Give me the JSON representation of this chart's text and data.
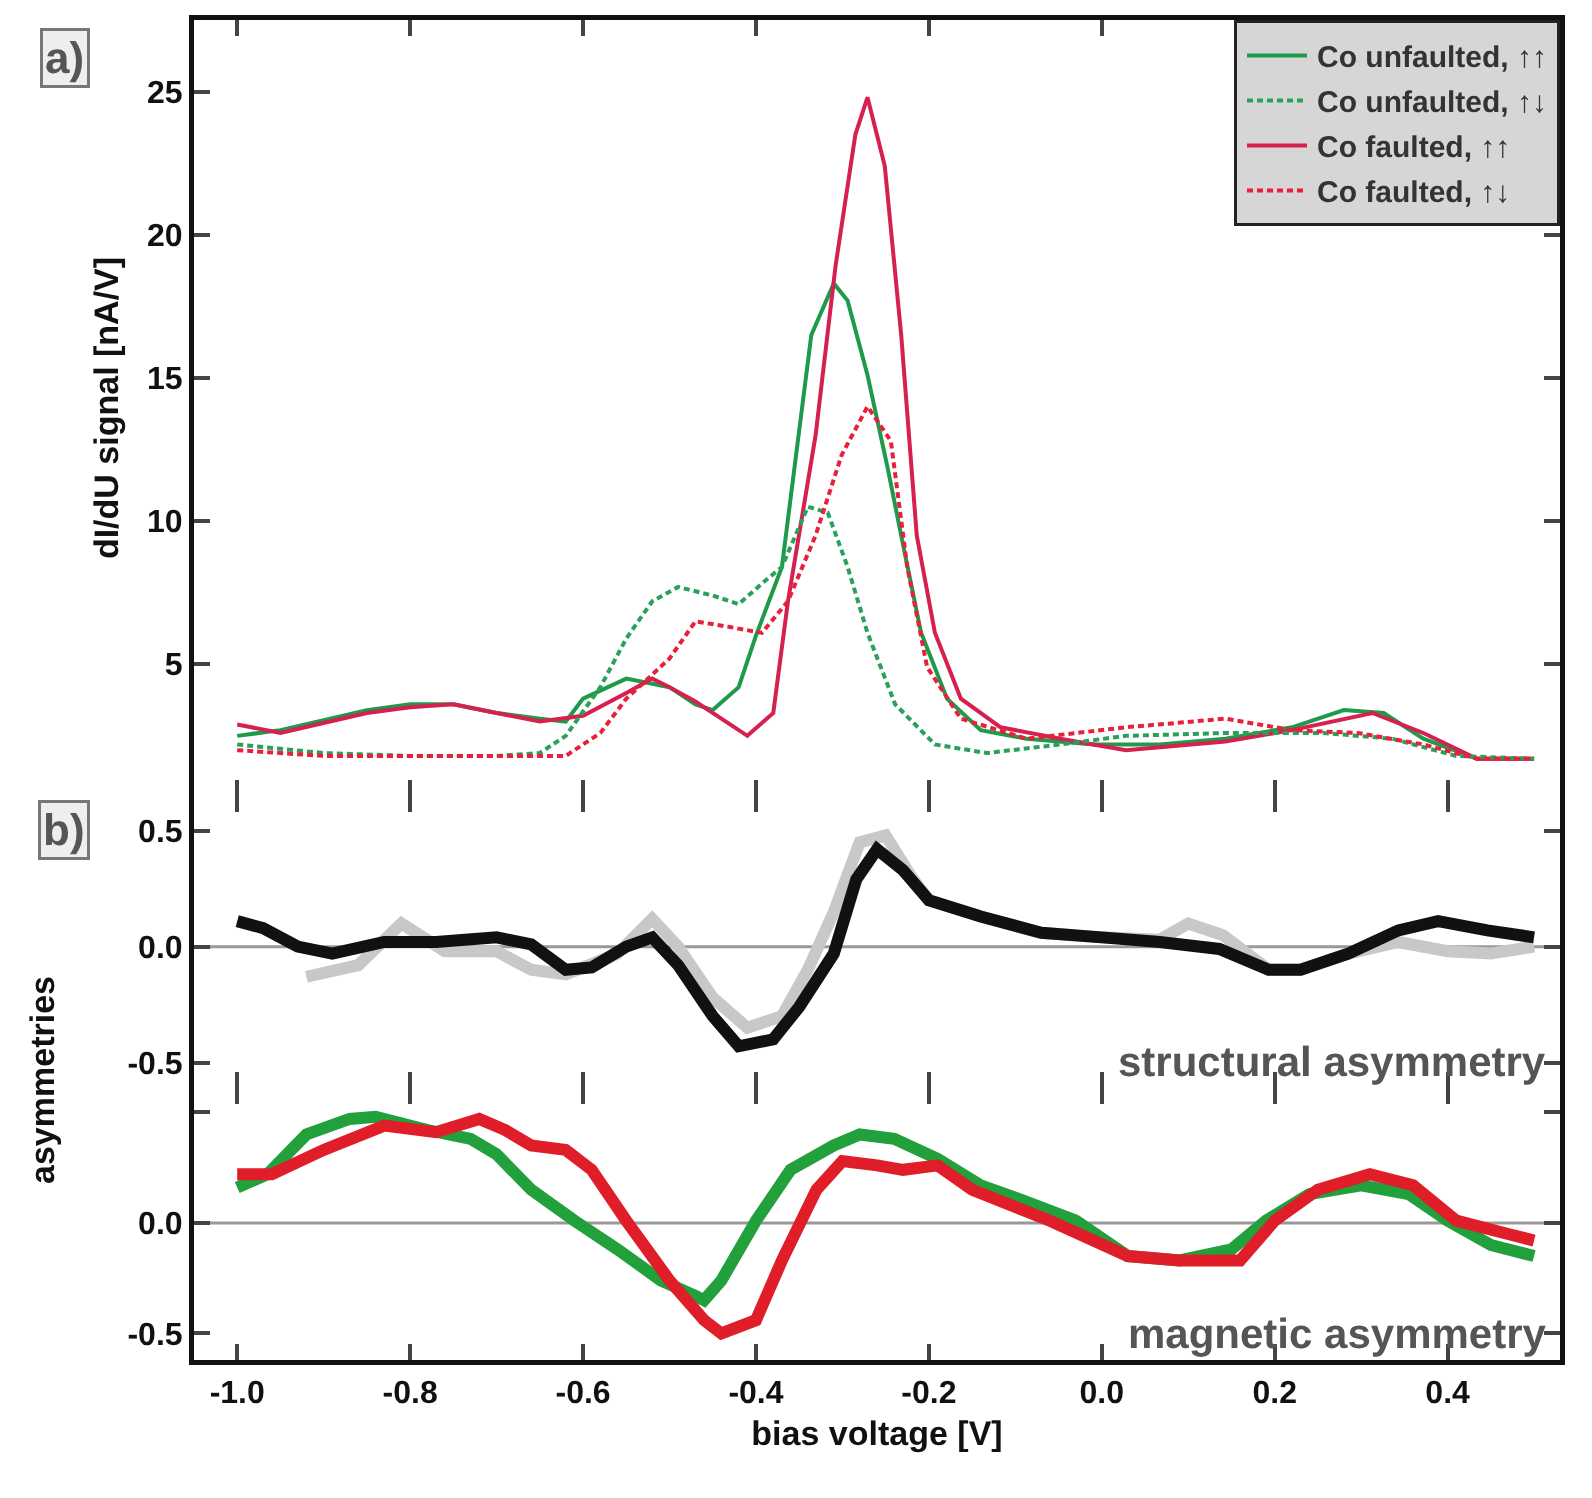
{
  "chart_data": [
    {
      "type": "line",
      "ylabel": "dI/dU signal [nA/V]",
      "annotations": [
        "a)"
      ],
      "xlim": [
        -1.05,
        0.53
      ],
      "ylim": [
        0.4,
        27.5
      ],
      "xticks": [
        {
          "value": -1.0,
          "label": null
        },
        {
          "value": -0.8,
          "label": null
        },
        {
          "value": -0.6,
          "label": null
        },
        {
          "value": -0.4,
          "label": null
        },
        {
          "value": -0.2,
          "label": null
        },
        {
          "value": 0,
          "label": null
        },
        {
          "value": 0.2,
          "label": null
        },
        {
          "value": 0.4,
          "label": null
        }
      ],
      "yticks": [
        5,
        10,
        15,
        20,
        25
      ],
      "tick_labels": "y",
      "grid": false,
      "legend": "top right",
      "marker": "none",
      "line_style": "solid",
      "series": [
        {
          "name": "Co unfaulted, ↑↑",
          "color": "#1f9a4a",
          "x": [
            -1.0,
            -0.95,
            -0.85,
            -0.8,
            -0.75,
            -0.7,
            -0.65,
            -0.62,
            -0.6,
            -0.55,
            -0.5,
            -0.47,
            -0.45,
            -0.42,
            -0.4,
            -0.37,
            -0.336,
            -0.31,
            -0.294,
            -0.271,
            -0.248,
            -0.228,
            -0.209,
            -0.179,
            -0.14,
            -0.087,
            -0.009,
            0.067,
            0.143,
            0.22,
            0.28,
            0.326,
            0.372,
            0.434,
            0.5
          ],
          "values": [
            2.5,
            2.7,
            3.4,
            3.6,
            3.6,
            3.3,
            3.1,
            3.0,
            3.8,
            4.5,
            4.2,
            3.6,
            3.4,
            4.2,
            6.0,
            8.4,
            16.5,
            18.3,
            17.7,
            15.1,
            11.9,
            8.9,
            6.1,
            3.8,
            2.7,
            2.4,
            2.2,
            2.2,
            2.4,
            2.8,
            3.4,
            3.3,
            2.4,
            1.7,
            1.7
          ]
        },
        {
          "name": "Co unfaulted, ↑↓",
          "color": "#2aa05a",
          "line_style": "dashed",
          "x": [
            -1.0,
            -0.9,
            -0.8,
            -0.7,
            -0.65,
            -0.62,
            -0.58,
            -0.55,
            -0.52,
            -0.49,
            -0.45,
            -0.42,
            -0.39,
            -0.37,
            -0.34,
            -0.317,
            -0.294,
            -0.271,
            -0.239,
            -0.193,
            -0.133,
            -0.048,
            0.028,
            0.143,
            0.257,
            0.336,
            0.41,
            0.5
          ],
          "values": [
            2.2,
            1.9,
            1.8,
            1.8,
            1.9,
            2.5,
            4.2,
            5.9,
            7.2,
            7.7,
            7.4,
            7.1,
            7.9,
            8.4,
            10.5,
            10.3,
            8.4,
            6.1,
            3.6,
            2.2,
            1.9,
            2.2,
            2.5,
            2.6,
            2.6,
            2.4,
            1.8,
            1.7
          ]
        },
        {
          "name": "Co faulted, ↑↑",
          "color": "#d6204f",
          "x": [
            -1.0,
            -0.95,
            -0.85,
            -0.8,
            -0.75,
            -0.7,
            -0.65,
            -0.6,
            -0.55,
            -0.52,
            -0.5,
            -0.47,
            -0.44,
            -0.41,
            -0.38,
            -0.363,
            -0.331,
            -0.308,
            -0.285,
            -0.271,
            -0.251,
            -0.232,
            -0.214,
            -0.193,
            -0.163,
            -0.117,
            -0.048,
            0.028,
            0.143,
            0.22,
            0.313,
            0.372,
            0.434,
            0.5
          ],
          "values": [
            2.9,
            2.6,
            3.3,
            3.5,
            3.6,
            3.3,
            3.0,
            3.2,
            4.0,
            4.5,
            4.2,
            3.7,
            3.1,
            2.5,
            3.3,
            7.2,
            13.0,
            18.9,
            23.5,
            24.8,
            22.4,
            16.5,
            9.5,
            6.1,
            3.8,
            2.8,
            2.4,
            2.0,
            2.3,
            2.7,
            3.3,
            2.6,
            1.7,
            1.7
          ]
        },
        {
          "name": "Co faulted, ↑↓",
          "color": "#e8203c",
          "line_style": "dashed",
          "x": [
            -1.0,
            -0.9,
            -0.8,
            -0.7,
            -0.62,
            -0.58,
            -0.55,
            -0.5,
            -0.47,
            -0.43,
            -0.393,
            -0.363,
            -0.331,
            -0.301,
            -0.271,
            -0.244,
            -0.225,
            -0.202,
            -0.163,
            -0.087,
            0.028,
            0.143,
            0.22,
            0.296,
            0.372,
            0.434,
            0.5
          ],
          "values": [
            2.0,
            1.8,
            1.8,
            1.8,
            1.8,
            2.6,
            3.8,
            5.2,
            6.5,
            6.3,
            6.1,
            7.2,
            9.5,
            12.3,
            14.0,
            12.8,
            8.4,
            4.9,
            3.1,
            2.4,
            2.8,
            3.1,
            2.7,
            2.6,
            2.2,
            1.7,
            1.7
          ]
        }
      ]
    },
    {
      "type": "line",
      "annotations": [
        "b)",
        "structural asymmetry"
      ],
      "xlim": [
        -1.05,
        0.53
      ],
      "ylim": [
        -0.61,
        0.65
      ],
      "xticks": [
        {
          "value": -1.0,
          "label": null
        },
        {
          "value": -0.8,
          "label": null
        },
        {
          "value": -0.6,
          "label": null
        },
        {
          "value": -0.4,
          "label": null
        },
        {
          "value": -0.2,
          "label": null
        },
        {
          "value": 0,
          "label": null
        },
        {
          "value": 0.2,
          "label": null
        },
        {
          "value": 0.4,
          "label": null
        }
      ],
      "yticks": [
        {
          "value": -0.5,
          "label": "-0.5"
        },
        {
          "value": 0,
          "label": "0.0"
        },
        {
          "value": 0.5,
          "label": "0.5"
        }
      ],
      "tick_labels": "y",
      "grid": false,
      "marker": "none",
      "line_style": "solid",
      "ref_lines": [
        {
          "axis": "y",
          "value": 0,
          "color": "#999999"
        }
      ],
      "series": [
        {
          "color": "#c8c8c8",
          "x": [
            -0.92,
            -0.86,
            -0.81,
            -0.76,
            -0.7,
            -0.66,
            -0.62,
            -0.56,
            -0.52,
            -0.49,
            -0.45,
            -0.41,
            -0.37,
            -0.34,
            -0.31,
            -0.28,
            -0.25,
            -0.22,
            -0.2,
            -0.14,
            -0.07,
            0.0,
            0.067,
            0.1,
            0.14,
            0.193,
            0.23,
            0.285,
            0.343,
            0.4,
            0.45,
            0.5
          ],
          "values": [
            -0.13,
            -0.08,
            0.1,
            -0.02,
            -0.02,
            -0.1,
            -0.12,
            -0.03,
            0.12,
            0.0,
            -0.22,
            -0.35,
            -0.3,
            -0.1,
            0.15,
            0.45,
            0.48,
            0.3,
            0.2,
            0.13,
            0.06,
            0.04,
            0.03,
            0.1,
            0.05,
            -0.1,
            -0.1,
            -0.03,
            0.02,
            -0.02,
            -0.03,
            0.0
          ]
        },
        {
          "color": "#111111",
          "x": [
            -1.0,
            -0.97,
            -0.93,
            -0.89,
            -0.83,
            -0.77,
            -0.7,
            -0.66,
            -0.62,
            -0.59,
            -0.55,
            -0.52,
            -0.49,
            -0.45,
            -0.42,
            -0.38,
            -0.35,
            -0.31,
            -0.284,
            -0.26,
            -0.23,
            -0.2,
            -0.14,
            -0.07,
            0.0,
            0.067,
            0.136,
            0.193,
            0.23,
            0.285,
            0.343,
            0.389,
            0.446,
            0.5
          ],
          "values": [
            0.11,
            0.08,
            0.0,
            -0.03,
            0.02,
            0.02,
            0.04,
            0.01,
            -0.1,
            -0.09,
            0.0,
            0.04,
            -0.08,
            -0.3,
            -0.43,
            -0.4,
            -0.26,
            -0.03,
            0.29,
            0.42,
            0.33,
            0.2,
            0.13,
            0.06,
            0.04,
            0.02,
            -0.01,
            -0.1,
            -0.1,
            -0.03,
            0.07,
            0.11,
            0.07,
            0.04
          ]
        }
      ]
    },
    {
      "type": "line",
      "xlabel": "bias voltage [V]",
      "ylabel": "asymmetries",
      "annotations": [
        "magnetic asymmetry"
      ],
      "xlim": [
        -1.05,
        0.53
      ],
      "ylim": [
        -0.62,
        0.61
      ],
      "xticks": [
        {
          "value": -1.0,
          "label": "-1.0"
        },
        {
          "value": -0.8,
          "label": "-0.8"
        },
        {
          "value": -0.6,
          "label": "-0.6"
        },
        {
          "value": -0.4,
          "label": "-0.4"
        },
        {
          "value": -0.2,
          "label": "-0.2"
        },
        {
          "value": 0,
          "label": "0.0"
        },
        {
          "value": 0.2,
          "label": "0.2"
        },
        {
          "value": 0.4,
          "label": "0.4"
        }
      ],
      "yticks": [
        {
          "value": -0.5,
          "label": "-0.5"
        },
        {
          "value": 0,
          "label": "0.0"
        },
        {
          "value": 0.5,
          "label": null
        }
      ],
      "grid": false,
      "marker": "none",
      "line_style": "solid",
      "ref_lines": [
        {
          "axis": "y",
          "value": 0,
          "color": "#999999"
        }
      ],
      "series": [
        {
          "color": "#22a03c",
          "x": [
            -1.0,
            -0.965,
            -0.92,
            -0.87,
            -0.84,
            -0.78,
            -0.73,
            -0.7,
            -0.66,
            -0.61,
            -0.56,
            -0.51,
            -0.47,
            -0.46,
            -0.44,
            -0.4,
            -0.36,
            -0.31,
            -0.28,
            -0.24,
            -0.19,
            -0.14,
            -0.09,
            -0.03,
            0.03,
            0.09,
            0.15,
            0.19,
            0.24,
            0.3,
            0.355,
            0.4,
            0.45,
            0.5
          ],
          "values": [
            0.16,
            0.22,
            0.4,
            0.47,
            0.48,
            0.42,
            0.38,
            0.31,
            0.15,
            0.01,
            -0.12,
            -0.26,
            -0.33,
            -0.35,
            -0.26,
            0.01,
            0.24,
            0.35,
            0.4,
            0.38,
            0.29,
            0.17,
            0.1,
            0.01,
            -0.15,
            -0.17,
            -0.12,
            0.01,
            0.13,
            0.17,
            0.13,
            0.01,
            -0.1,
            -0.15
          ]
        },
        {
          "color": "#e01e2a",
          "x": [
            -1.0,
            -0.96,
            -0.9,
            -0.83,
            -0.77,
            -0.72,
            -0.69,
            -0.66,
            -0.62,
            -0.59,
            -0.55,
            -0.5,
            -0.46,
            -0.44,
            -0.4,
            -0.37,
            -0.33,
            -0.3,
            -0.26,
            -0.23,
            -0.19,
            -0.15,
            -0.06,
            0.03,
            0.09,
            0.16,
            0.2,
            0.25,
            0.31,
            0.36,
            0.41,
            0.47,
            0.5
          ],
          "values": [
            0.22,
            0.22,
            0.33,
            0.44,
            0.41,
            0.47,
            0.42,
            0.35,
            0.33,
            0.24,
            0.01,
            -0.26,
            -0.44,
            -0.5,
            -0.44,
            -0.17,
            0.15,
            0.28,
            0.26,
            0.24,
            0.26,
            0.15,
            0.01,
            -0.15,
            -0.17,
            -0.17,
            0.01,
            0.15,
            0.22,
            0.17,
            0.01,
            -0.05,
            -0.08
          ]
        }
      ]
    }
  ]
}
